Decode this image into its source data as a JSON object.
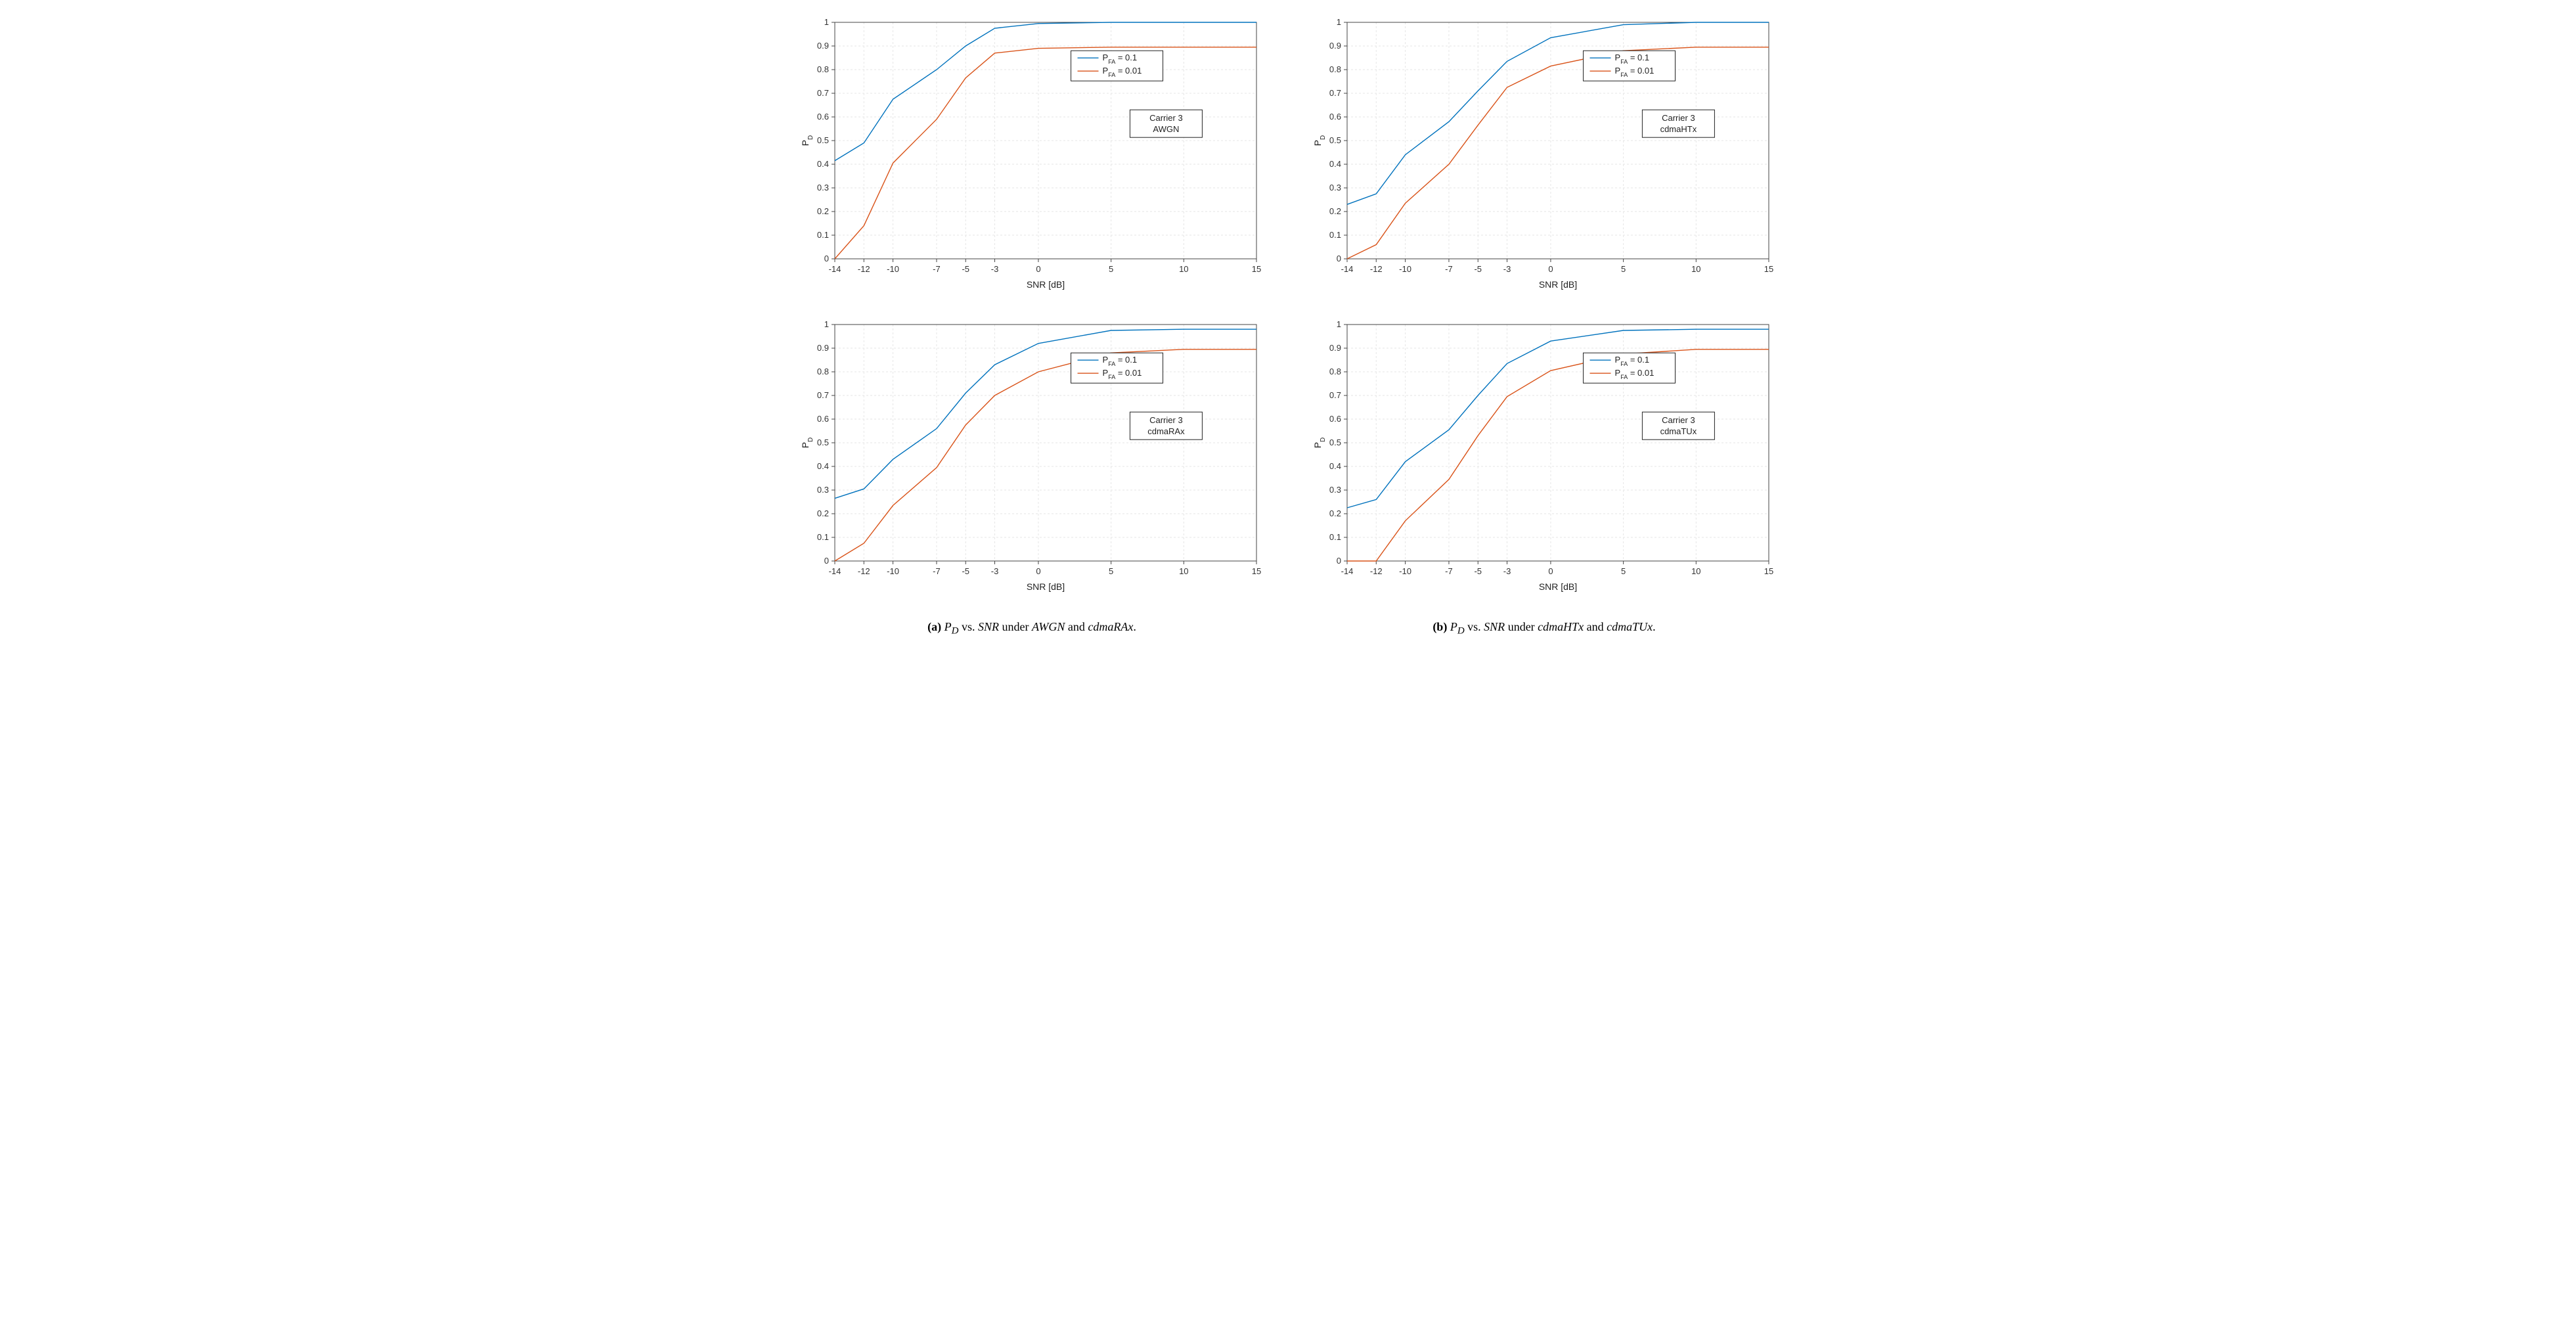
{
  "global": {
    "x_ticks": [
      "-14",
      "-12",
      "-10",
      "-7",
      "-5",
      "-3",
      "0",
      "5",
      "10",
      "15"
    ],
    "x_values": [
      -14,
      -12,
      -10,
      -7,
      -5,
      -3,
      0,
      5,
      10,
      15
    ],
    "y_ticks": [
      "0",
      "0.1",
      "0.2",
      "0.3",
      "0.4",
      "0.5",
      "0.6",
      "0.7",
      "0.8",
      "0.9",
      "1"
    ],
    "y_values": [
      0,
      0.1,
      0.2,
      0.3,
      0.4,
      0.5,
      0.6,
      0.7,
      0.8,
      0.9,
      1.0
    ],
    "xlim": [
      -14,
      15
    ],
    "ylim": [
      0,
      1
    ],
    "xlabel": "SNR [dB]",
    "ylabel": "P",
    "ylabel_sub": "D",
    "background_color": "#ffffff",
    "grid_color": "#e6e6e6",
    "axis_color": "#444444",
    "line_width": 1.4,
    "legend_entries": [
      "P_FA = 0.1",
      "P_FA = 0.01"
    ],
    "series_colors": [
      "#0072bd",
      "#d95319"
    ],
    "series_names": [
      "PFA = 0.1",
      "PFA = 0.01"
    ],
    "label_fontsize": 14,
    "tick_fontsize": 13,
    "legend_fontsize": 13
  },
  "captions": {
    "a_prefix": "(a)",
    "a_body_1": "P",
    "a_body_1_sub": "D",
    "a_body_2": " vs. ",
    "a_body_3": "SNR",
    "a_body_4": " under ",
    "a_body_5": "AWGN",
    "a_body_6": " and ",
    "a_body_7": "cdmaRAx",
    "a_body_8": ".",
    "b_prefix": "(b)",
    "b_body_1": "P",
    "b_body_1_sub": "D",
    "b_body_2": " vs. ",
    "b_body_3": "SNR",
    "b_body_4": " under ",
    "b_body_5": "cdmaHTx",
    "b_body_6": " and ",
    "b_body_7": "cdmaTUx",
    "b_body_8": "."
  },
  "plots": {
    "awgn": {
      "type": "line",
      "annotation": [
        "Carrier 3",
        "AWGN"
      ],
      "series": [
        {
          "name": "PFA = 0.1",
          "color": "#0072bd",
          "x": [
            -14,
            -12,
            -10,
            -7,
            -5,
            -3,
            0,
            5,
            10,
            15
          ],
          "y": [
            0.415,
            0.49,
            0.675,
            0.8,
            0.9,
            0.975,
            0.995,
            1.0,
            1.0,
            1.0
          ]
        },
        {
          "name": "PFA = 0.01",
          "color": "#d95319",
          "x": [
            -14,
            -12,
            -10,
            -7,
            -5,
            -3,
            0,
            5,
            10,
            15
          ],
          "y": [
            0.0,
            0.14,
            0.405,
            0.59,
            0.765,
            0.87,
            0.89,
            0.895,
            0.895,
            0.895
          ]
        }
      ]
    },
    "cdmahtx": {
      "type": "line",
      "annotation": [
        "Carrier 3",
        "cdmaHTx"
      ],
      "series": [
        {
          "name": "PFA = 0.1",
          "color": "#0072bd",
          "x": [
            -14,
            -12,
            -10,
            -7,
            -5,
            -3,
            0,
            5,
            10,
            15
          ],
          "y": [
            0.23,
            0.275,
            0.44,
            0.58,
            0.71,
            0.835,
            0.935,
            0.99,
            1.0,
            1.0
          ]
        },
        {
          "name": "PFA = 0.01",
          "color": "#d95319",
          "x": [
            -14,
            -12,
            -10,
            -7,
            -5,
            -3,
            0,
            5,
            10,
            15
          ],
          "y": [
            0.0,
            0.06,
            0.235,
            0.4,
            0.565,
            0.725,
            0.815,
            0.88,
            0.895,
            0.895
          ]
        }
      ]
    },
    "cdmarax": {
      "type": "line",
      "annotation": [
        "Carrier 3",
        "cdmaRAx"
      ],
      "series": [
        {
          "name": "PFA = 0.1",
          "color": "#0072bd",
          "x": [
            -14,
            -12,
            -10,
            -7,
            -5,
            -3,
            0,
            5,
            10,
            15
          ],
          "y": [
            0.265,
            0.305,
            0.43,
            0.56,
            0.71,
            0.83,
            0.92,
            0.975,
            0.98,
            0.98
          ]
        },
        {
          "name": "PFA = 0.01",
          "color": "#d95319",
          "x": [
            -14,
            -12,
            -10,
            -7,
            -5,
            -3,
            0,
            5,
            10,
            15
          ],
          "y": [
            0.0,
            0.075,
            0.235,
            0.395,
            0.575,
            0.7,
            0.8,
            0.88,
            0.895,
            0.895
          ]
        }
      ]
    },
    "cdmatux": {
      "type": "line",
      "annotation": [
        "Carrier 3",
        "cdmaTUx"
      ],
      "series": [
        {
          "name": "PFA = 0.1",
          "color": "#0072bd",
          "x": [
            -14,
            -12,
            -10,
            -7,
            -5,
            -3,
            0,
            5,
            10,
            15
          ],
          "y": [
            0.225,
            0.26,
            0.42,
            0.555,
            0.7,
            0.835,
            0.93,
            0.975,
            0.98,
            0.98
          ]
        },
        {
          "name": "PFA = 0.01",
          "color": "#d95319",
          "x": [
            -14,
            -12,
            -10,
            -7,
            -5,
            -3,
            0,
            5,
            10,
            15
          ],
          "y": [
            0.0,
            0.0,
            0.17,
            0.345,
            0.53,
            0.695,
            0.805,
            0.875,
            0.895,
            0.895
          ]
        }
      ]
    }
  }
}
